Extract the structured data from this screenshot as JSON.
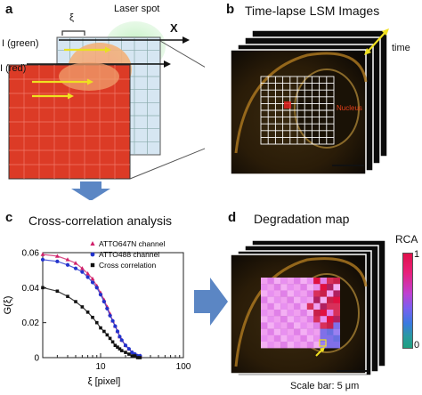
{
  "panel_a": {
    "letter": "a",
    "laser_spot_label": "Laser spot",
    "xi_label": "ξ",
    "x_axis_label": "X",
    "green_label": "I (green)",
    "red_label": "I (red)"
  },
  "panel_b": {
    "letter": "b",
    "title": "Time-lapse LSM Images",
    "time_label": "time",
    "nucleus_label": "Nucleus"
  },
  "panel_c": {
    "letter": "c",
    "title": "Cross-correlation analysis"
  },
  "panel_d": {
    "letter": "d",
    "title": "Degradation map",
    "colorbar_title": "RCA",
    "colorbar_max": "1",
    "colorbar_min": "0",
    "scale_bar_label": "Scale bar: 5 μm"
  },
  "chart_data": {
    "type": "scatter",
    "xlabel": "ξ [pixel]",
    "ylabel": "G(ξ)",
    "xscale": "log",
    "xlim": [
      2,
      100
    ],
    "ylim": [
      0,
      0.06
    ],
    "xticks": [
      "10",
      "100"
    ],
    "yticks": [
      "0",
      "0.02",
      "0.04",
      "0.06"
    ],
    "legend_position": "top-right",
    "series": [
      {
        "name": "ATTO647N channel",
        "color": "#d0206a",
        "marker": "triangle",
        "x": [
          2,
          3,
          4,
          5,
          6,
          7,
          8,
          9,
          10,
          11,
          12,
          13,
          14,
          15,
          16,
          17,
          18,
          20,
          22,
          24,
          26,
          28,
          30
        ],
        "y": [
          0.059,
          0.058,
          0.056,
          0.054,
          0.051,
          0.048,
          0.045,
          0.041,
          0.037,
          0.033,
          0.029,
          0.025,
          0.021,
          0.018,
          0.015,
          0.012,
          0.01,
          0.007,
          0.005,
          0.003,
          0.002,
          0.001,
          0.001
        ]
      },
      {
        "name": "ATTO488 channel",
        "color": "#2233cc",
        "marker": "circle",
        "x": [
          2,
          3,
          4,
          5,
          6,
          7,
          8,
          9,
          10,
          11,
          12,
          13,
          14,
          15,
          16,
          17,
          18,
          20,
          22,
          24,
          26,
          28,
          30
        ],
        "y": [
          0.056,
          0.055,
          0.053,
          0.051,
          0.049,
          0.046,
          0.043,
          0.04,
          0.036,
          0.032,
          0.028,
          0.024,
          0.021,
          0.018,
          0.015,
          0.012,
          0.01,
          0.007,
          0.005,
          0.003,
          0.002,
          0.001,
          0.001
        ]
      },
      {
        "name": "Cross correlation",
        "color": "#111111",
        "marker": "square",
        "x": [
          2,
          3,
          4,
          5,
          6,
          7,
          8,
          9,
          10,
          11,
          12,
          13,
          14,
          15,
          16,
          17,
          18,
          20,
          22,
          24,
          26,
          28,
          30
        ],
        "y": [
          0.04,
          0.038,
          0.035,
          0.032,
          0.029,
          0.026,
          0.023,
          0.02,
          0.017,
          0.015,
          0.013,
          0.011,
          0.009,
          0.007,
          0.006,
          0.005,
          0.004,
          0.003,
          0.002,
          0.001,
          0.001,
          0.0,
          0.0
        ]
      }
    ]
  }
}
